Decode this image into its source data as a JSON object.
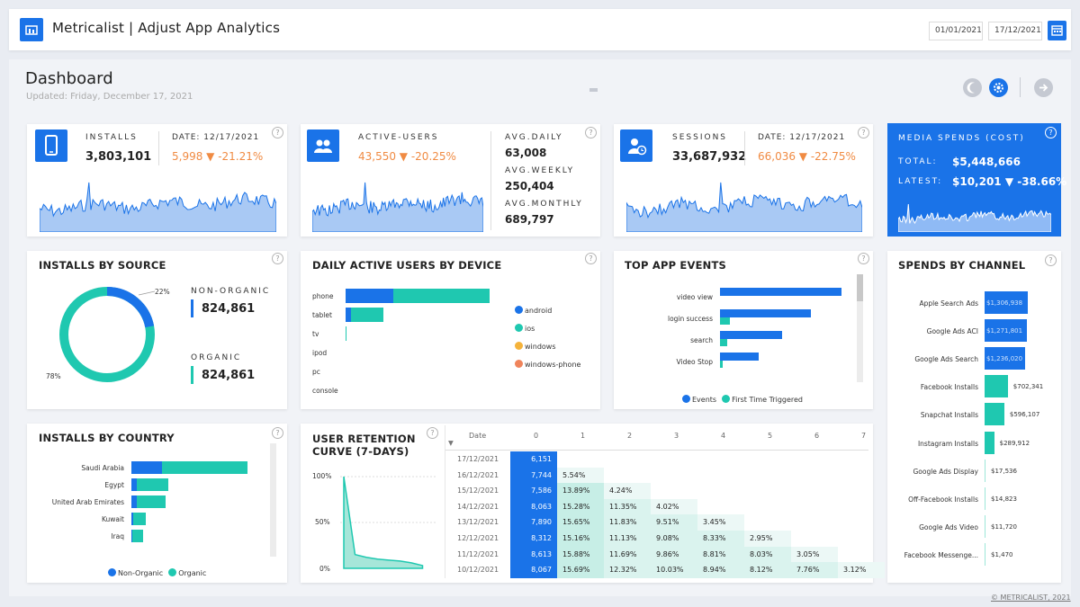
{
  "header": {
    "title": "Metricalist | Adjust App Analytics",
    "date_from": "01/01/2021",
    "date_to": "17/12/2021"
  },
  "dashboard": {
    "title": "Dashboard",
    "updated": "Updated: Friday, December 17, 2021"
  },
  "kpis": {
    "installs": {
      "label": "INSTALLS",
      "value": "3,803,101",
      "date_label": "DATE: 12/17/2021",
      "delta": "5,998 ▼ -21.21%"
    },
    "active_users": {
      "label": "ACTIVE-USERS",
      "delta": "43,550 ▼ -20.25%",
      "avg_daily_label": "AVG.DAILY",
      "avg_daily": "63,008",
      "avg_weekly_label": "AVG.WEEKLY",
      "avg_weekly": "250,404",
      "avg_monthly_label": "AVG.MONTHLY",
      "avg_monthly": "689,797"
    },
    "sessions": {
      "label": "SESSIONS",
      "value": "33,687,932",
      "date_label": "DATE: 12/17/2021",
      "delta": "66,036 ▼ -22.75%"
    },
    "media": {
      "label": "MEDIA SPENDS (COST)",
      "total_label": "TOTAL:",
      "total": "$5,448,666",
      "latest_label": "LATEST:",
      "latest": "$10,201 ▼ -38.66%"
    }
  },
  "installs_by_source": {
    "title": "INSTALLS BY SOURCE",
    "pct_non_organic": "22%",
    "pct_organic": "78%",
    "non_organic_label": "NON-ORGANIC",
    "non_organic_value": "824,861",
    "organic_label": "ORGANIC",
    "organic_value": "824,861"
  },
  "dau_by_device": {
    "title": "DAILY ACTIVE USERS BY DEVICE",
    "legend": [
      "android",
      "ios",
      "windows",
      "windows-phone"
    ]
  },
  "top_events": {
    "title": "TOP APP EVENTS",
    "legend": [
      "Events",
      "First Time Triggered"
    ]
  },
  "spends_by_channel": {
    "title": "SPENDS BY CHANNEL"
  },
  "installs_by_country": {
    "title": "INSTALLS BY COUNTRY",
    "legend": [
      "Non-Organic",
      "Organic"
    ]
  },
  "retention": {
    "title_line1": "USER RETENTION",
    "title_line2": "CURVE (7-DAYS)",
    "y_ticks": [
      "100%",
      "50%",
      "0%"
    ],
    "date_header": "Date",
    "day_headers": [
      "0",
      "1",
      "2",
      "3",
      "4",
      "5",
      "6",
      "7"
    ],
    "rows": [
      {
        "date": "17/12/2021",
        "cells": [
          "6,151"
        ]
      },
      {
        "date": "16/12/2021",
        "cells": [
          "7,744",
          "5.54%"
        ]
      },
      {
        "date": "15/12/2021",
        "cells": [
          "7,586",
          "13.89%",
          "4.24%"
        ]
      },
      {
        "date": "14/12/2021",
        "cells": [
          "8,063",
          "15.28%",
          "11.35%",
          "4.02%"
        ]
      },
      {
        "date": "13/12/2021",
        "cells": [
          "7,890",
          "15.65%",
          "11.83%",
          "9.51%",
          "3.45%"
        ]
      },
      {
        "date": "12/12/2021",
        "cells": [
          "8,312",
          "15.16%",
          "11.13%",
          "9.08%",
          "8.33%",
          "2.95%"
        ]
      },
      {
        "date": "11/12/2021",
        "cells": [
          "8,613",
          "15.88%",
          "11.69%",
          "9.86%",
          "8.81%",
          "8.03%",
          "3.05%"
        ]
      },
      {
        "date": "10/12/2021",
        "cells": [
          "8,067",
          "15.69%",
          "12.32%",
          "10.03%",
          "8.94%",
          "8.12%",
          "7.76%",
          "3.12%"
        ]
      }
    ]
  },
  "footer": "© METRICALIST, 2021",
  "colors": {
    "blue": "#1a73e8",
    "teal": "#1fc8b0",
    "orange": "#f08b43",
    "yellow": "#f5b33b",
    "coral": "#f0845b"
  },
  "chart_data": [
    {
      "type": "bar",
      "chart": "dau_by_device",
      "categories": [
        "phone",
        "tablet",
        "tv",
        "ipod",
        "pc",
        "console"
      ],
      "series": [
        {
          "name": "android",
          "values": [
            47,
            5,
            0,
            0,
            0,
            0
          ]
        },
        {
          "name": "ios",
          "values": [
            94,
            32,
            1,
            0,
            0,
            0
          ]
        }
      ]
    },
    {
      "type": "bar",
      "chart": "top_events",
      "categories": [
        "video view",
        "login success",
        "search",
        "Video Stop"
      ],
      "series": [
        {
          "name": "Events",
          "values": [
            100,
            75,
            51,
            32
          ]
        },
        {
          "name": "First Time Triggered",
          "values": [
            0,
            8,
            6,
            2
          ]
        }
      ]
    },
    {
      "type": "bar",
      "chart": "spends_by_channel",
      "categories": [
        "Apple Search Ads",
        "Google Ads ACI",
        "Google Ads Search",
        "Facebook Installs",
        "Snapchat Installs",
        "Instagram Installs",
        "Google Ads Display",
        "Off-Facebook Installs",
        "Google Ads Video",
        "Facebook Messenge..."
      ],
      "labels": [
        "$1,306,938",
        "$1,271,801",
        "$1,236,020",
        "$702,341",
        "$596,107",
        "$289,912",
        "$17,536",
        "$14,823",
        "$11,720",
        "$1,470"
      ],
      "values": [
        1306938,
        1271801,
        1236020,
        702341,
        596107,
        289912,
        17536,
        14823,
        11720,
        1470
      ]
    },
    {
      "type": "bar",
      "chart": "installs_by_country",
      "categories": [
        "Saudi Arabia",
        "Egypt",
        "United Arab Emirates",
        "Kuwait",
        "Iraq"
      ],
      "series": [
        {
          "name": "Non-Organic",
          "values": [
            34,
            6,
            6,
            2,
            1
          ]
        },
        {
          "name": "Organic",
          "values": [
            95,
            35,
            32,
            14,
            12
          ]
        }
      ]
    },
    {
      "type": "pie",
      "chart": "installs_by_source",
      "categories": [
        "Non-Organic",
        "Organic"
      ],
      "values": [
        22,
        78
      ]
    },
    {
      "type": "area",
      "chart": "user_retention_curve",
      "x": [
        0,
        1,
        2,
        3,
        4,
        5,
        6,
        7
      ],
      "values": [
        100,
        15,
        12,
        10,
        9,
        8,
        6,
        3
      ],
      "ylim": [
        0,
        100
      ]
    }
  ]
}
